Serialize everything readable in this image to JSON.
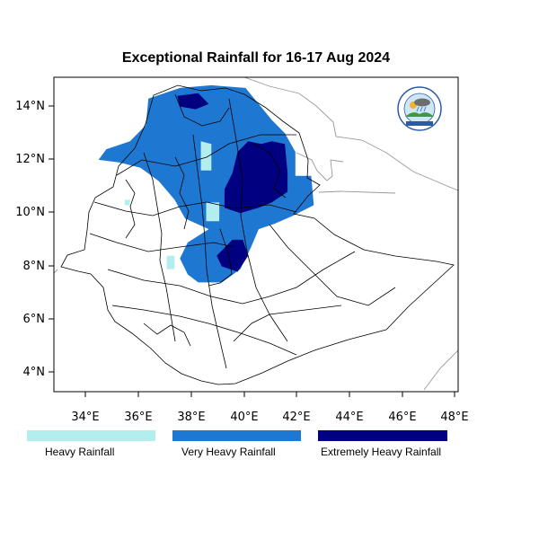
{
  "title": "Exceptional Rainfall for 16-17 Aug 2024",
  "axes": {
    "x_ticks": [
      "34°E",
      "36°E",
      "38°E",
      "40°E",
      "42°E",
      "44°E",
      "46°E",
      "48°E"
    ],
    "y_ticks": [
      "14°N",
      "12°N",
      "10°N",
      "8°N",
      "6°N",
      "4°N"
    ]
  },
  "legend": [
    {
      "label": "Heavy Rainfall",
      "color": "#b2eeee"
    },
    {
      "label": "Very Heavy Rainfall",
      "color": "#1e78d2"
    },
    {
      "label": "Extremely Heavy Rainfall",
      "color": "#000080"
    }
  ],
  "logo": {
    "icon": "meteorology-agency-logo-icon"
  },
  "map": {
    "type": "rainfall-category-map",
    "region": "Ethiopia",
    "lon_range": [
      32.8,
      48.2
    ],
    "lat_range": [
      3.2,
      15.0
    ],
    "rainfall_areas": [
      {
        "category": "Very Heavy Rainfall",
        "polygon": [
          [
            36.4,
            14.2
          ],
          [
            37.6,
            14.6
          ],
          [
            38.8,
            14.7
          ],
          [
            40.1,
            14.6
          ],
          [
            41.1,
            13.4
          ],
          [
            41.6,
            12.9
          ],
          [
            42.0,
            12.2
          ],
          [
            42.0,
            11.3
          ],
          [
            42.6,
            11.3
          ],
          [
            42.7,
            10.2
          ],
          [
            41.9,
            9.8
          ],
          [
            41.2,
            9.5
          ],
          [
            40.6,
            9.3
          ],
          [
            40.3,
            8.6
          ],
          [
            39.9,
            7.8
          ],
          [
            39.2,
            7.3
          ],
          [
            38.3,
            7.3
          ],
          [
            37.9,
            7.6
          ],
          [
            37.6,
            8.2
          ],
          [
            37.9,
            8.8
          ],
          [
            38.7,
            9.3
          ],
          [
            37.8,
            9.7
          ],
          [
            37.4,
            10.4
          ],
          [
            36.8,
            11.1
          ],
          [
            36.1,
            11.6
          ],
          [
            35.3,
            11.8
          ],
          [
            34.5,
            11.9
          ],
          [
            34.8,
            12.3
          ],
          [
            35.7,
            12.6
          ],
          [
            36.3,
            13.2
          ]
        ]
      },
      {
        "category": "Extremely Heavy Rainfall",
        "polygon": [
          [
            39.8,
            12.2
          ],
          [
            40.2,
            12.6
          ],
          [
            40.7,
            12.5
          ],
          [
            41.1,
            12.6
          ],
          [
            41.6,
            12.5
          ],
          [
            41.7,
            11.4
          ],
          [
            41.7,
            10.7
          ],
          [
            41.1,
            10.3
          ],
          [
            40.6,
            10.1
          ],
          [
            39.9,
            9.9
          ],
          [
            39.3,
            10.1
          ],
          [
            39.3,
            10.8
          ],
          [
            39.6,
            11.4
          ]
        ]
      },
      {
        "category": "Extremely Heavy Rainfall",
        "polygon": [
          [
            39.6,
            8.9
          ],
          [
            40.0,
            8.9
          ],
          [
            40.2,
            8.3
          ],
          [
            39.8,
            7.7
          ],
          [
            39.2,
            7.9
          ],
          [
            39.0,
            8.3
          ]
        ]
      },
      {
        "category": "Extremely Heavy Rainfall",
        "polygon": [
          [
            37.5,
            14.3
          ],
          [
            38.3,
            14.4
          ],
          [
            38.7,
            14.0
          ],
          [
            38.2,
            13.8
          ],
          [
            37.6,
            13.9
          ]
        ]
      },
      {
        "category": "Heavy Rainfall",
        "polygon": [
          [
            38.4,
            12.6
          ],
          [
            38.8,
            12.5
          ],
          [
            38.8,
            11.5
          ],
          [
            38.4,
            11.5
          ]
        ]
      },
      {
        "category": "Heavy Rainfall",
        "polygon": [
          [
            35.5,
            10.4
          ],
          [
            35.7,
            10.4
          ],
          [
            35.7,
            10.2
          ],
          [
            35.5,
            10.2
          ]
        ]
      },
      {
        "category": "Heavy Rainfall",
        "polygon": [
          [
            37.1,
            8.3
          ],
          [
            37.4,
            8.3
          ],
          [
            37.4,
            7.8
          ],
          [
            37.1,
            7.8
          ]
        ]
      },
      {
        "category": "Heavy Rainfall",
        "polygon": [
          [
            38.6,
            10.3
          ],
          [
            39.1,
            10.3
          ],
          [
            39.1,
            9.6
          ],
          [
            38.6,
            9.6
          ]
        ]
      }
    ]
  }
}
